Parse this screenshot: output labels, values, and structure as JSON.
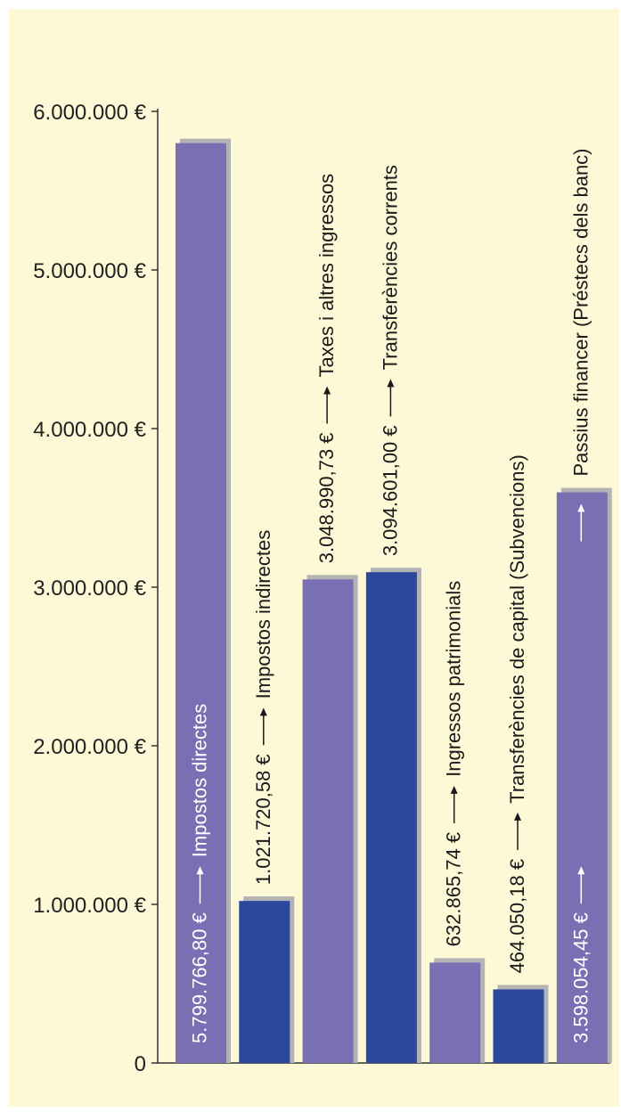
{
  "colors": {
    "background": "#fdf8d6",
    "axis": "#333333",
    "shadow": "#b3b3b3",
    "bar_light": "#7b6fb4",
    "bar_dark": "#2c489c",
    "label_on_bar": "#ffffff",
    "label_on_bg": "#1a1a1a"
  },
  "chart_data": {
    "type": "bar",
    "orientation": "vertical",
    "ylim": [
      0,
      6000000
    ],
    "yticks": [
      {
        "value": 0,
        "label": "0"
      },
      {
        "value": 1000000,
        "label": "1.000.000 €"
      },
      {
        "value": 2000000,
        "label": "2.000.000 €"
      },
      {
        "value": 3000000,
        "label": "3.000.000 €"
      },
      {
        "value": 4000000,
        "label": "4.000.000 €"
      },
      {
        "value": 5000000,
        "label": "5.000.000 €"
      },
      {
        "value": 6000000,
        "label": "6.000.000 €"
      }
    ],
    "grid": false,
    "bars": [
      {
        "category": "Impostos directes",
        "value": 5799766.8,
        "value_label": "5.799.766,80 €",
        "color": "#7b6fb4",
        "label_inside": true
      },
      {
        "category": "Impostos indirectes",
        "value": 1021720.58,
        "value_label": "1.021.720,58 €",
        "color": "#2c489c",
        "label_inside": false
      },
      {
        "category": "Taxes i altres ingressos",
        "value": 3048990.73,
        "value_label": "3.048.990,73 €",
        "color": "#7b6fb4",
        "label_inside": false
      },
      {
        "category": "Transferències corrents",
        "value": 3094601.0,
        "value_label": "3.094.601,00 €",
        "color": "#2c489c",
        "label_inside": false
      },
      {
        "category": "Ingressos patrimonials",
        "value": 632865.74,
        "value_label": "632.865,74 €",
        "color": "#7b6fb4",
        "label_inside": false
      },
      {
        "category": "Transferències de capital (Subvencions)",
        "value": 464050.18,
        "value_label": "464.050,18 €",
        "color": "#2c489c",
        "label_inside": false
      },
      {
        "category": "Passius financer (Préstecs dels banc)",
        "value": 3598054.45,
        "value_label": "3.598.054,45 €",
        "color": "#7b6fb4",
        "label_inside": true,
        "split_label": true
      }
    ]
  }
}
